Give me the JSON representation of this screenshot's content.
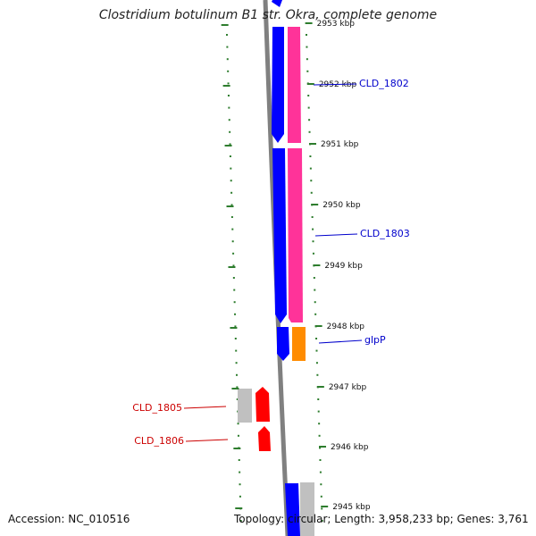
{
  "title": "Clostridium botulinum B1 str. Okra, complete genome",
  "footer": {
    "accession": "Accession: NC_010516",
    "summary": "Topology: circular; Length: 3,958,233 bp; Genes: 3,761"
  },
  "colors": {
    "backbone": "#808080",
    "cds_forward": "#0000ff",
    "cds_reverse": "#ff3399",
    "glpP_gene": "#ff8c00",
    "gray_feature": "#c0c0c0",
    "red_feature": "#ff0000",
    "tick_marks": "#2e7d2e",
    "label_blue": "#0000cc",
    "label_red": "#cc0000"
  },
  "ticks": [
    {
      "label": "2953 kbp"
    },
    {
      "label": "2952 kbp"
    },
    {
      "label": "2951 kbp"
    },
    {
      "label": "2950 kbp"
    },
    {
      "label": "2949 kbp"
    },
    {
      "label": "2948 kbp"
    },
    {
      "label": "2947 kbp"
    },
    {
      "label": "2946 kbp"
    },
    {
      "label": "2945 kbp"
    }
  ],
  "genes": [
    {
      "label": "CLD_1802"
    },
    {
      "label": "CLD_1803"
    },
    {
      "label": "glpP"
    },
    {
      "label": "CLD_1805"
    },
    {
      "label": "CLD_1806"
    }
  ]
}
